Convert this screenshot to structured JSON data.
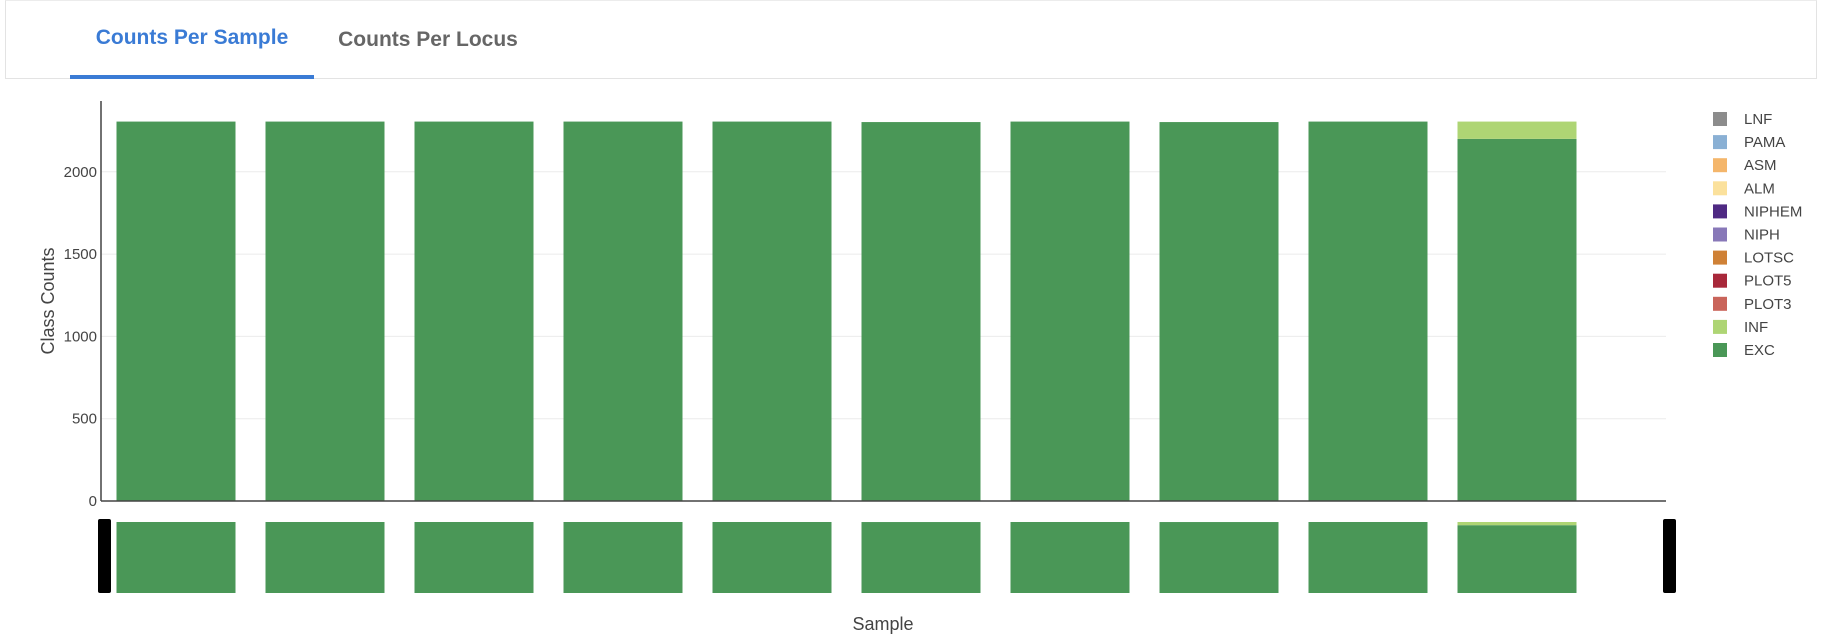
{
  "tabs": [
    {
      "label": "Counts Per Sample",
      "active": true
    },
    {
      "label": "Counts Per Locus",
      "active": false
    }
  ],
  "chart_data": {
    "type": "bar",
    "stacked": true,
    "categories": [
      "",
      "",
      "",
      "",
      "",
      "",
      "",
      "",
      "",
      ""
    ],
    "series": [
      {
        "name": "EXC",
        "color": "#4a9757",
        "values": [
          2305,
          2305,
          2305,
          2305,
          2305,
          2302,
          2305,
          2302,
          2305,
          2200
        ]
      },
      {
        "name": "INF",
        "color": "#aed574",
        "values": [
          0,
          0,
          0,
          0,
          0,
          0,
          0,
          0,
          0,
          105
        ]
      },
      {
        "name": "PLOT3",
        "color": "#c9645a",
        "values": [
          0,
          0,
          0,
          0,
          0,
          0,
          0,
          0,
          0,
          0
        ]
      },
      {
        "name": "PLOT5",
        "color": "#a8283a",
        "values": [
          0,
          0,
          0,
          0,
          0,
          0,
          0,
          0,
          0,
          0
        ]
      },
      {
        "name": "LOTSC",
        "color": "#cf8136",
        "values": [
          0,
          0,
          0,
          0,
          0,
          0,
          0,
          0,
          0,
          0
        ]
      },
      {
        "name": "NIPH",
        "color": "#8878b8",
        "values": [
          0,
          0,
          0,
          0,
          0,
          0,
          0,
          0,
          0,
          0
        ]
      },
      {
        "name": "NIPHEM",
        "color": "#4f2a83",
        "values": [
          0,
          0,
          0,
          0,
          0,
          0,
          0,
          0,
          0,
          0
        ]
      },
      {
        "name": "ALM",
        "color": "#fbe19c",
        "values": [
          0,
          0,
          0,
          0,
          0,
          0,
          0,
          0,
          0,
          0
        ]
      },
      {
        "name": "ASM",
        "color": "#f4b66b",
        "values": [
          0,
          0,
          0,
          0,
          0,
          0,
          0,
          0,
          0,
          0
        ]
      },
      {
        "name": "PAMA",
        "color": "#8ab0d4",
        "values": [
          0,
          0,
          0,
          0,
          0,
          0,
          0,
          0,
          0,
          0
        ]
      },
      {
        "name": "LNF",
        "color": "#8c8c8c",
        "values": [
          0,
          0,
          0,
          0,
          0,
          0,
          0,
          0,
          0,
          0
        ]
      }
    ],
    "legend_order": [
      "LNF",
      "PAMA",
      "ASM",
      "ALM",
      "NIPHEM",
      "NIPH",
      "LOTSC",
      "PLOT5",
      "PLOT3",
      "INF",
      "EXC"
    ],
    "xlabel": "Sample",
    "ylabel": "Class Counts",
    "yticks": [
      0,
      500,
      1000,
      1500,
      2000
    ],
    "ylim": [
      0,
      2430
    ],
    "grid": true,
    "legend_position": "right",
    "range_slider": true
  }
}
